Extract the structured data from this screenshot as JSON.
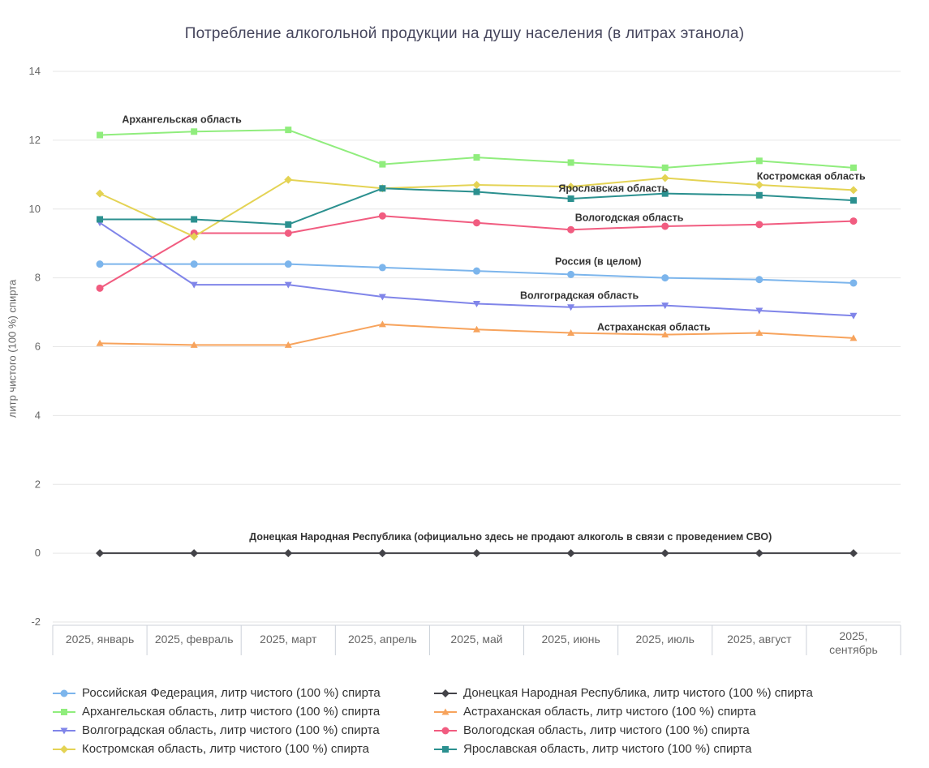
{
  "title": "Потребление алкогольной продукции на душу населения (в литрах этанола)",
  "chart_data": {
    "type": "line",
    "title": "Потребление алкогольной продукции на душу населения (в литрах этанола)",
    "xlabel": "",
    "ylabel": "литр чистого (100 %) спирта",
    "ylim": [
      -2,
      14
    ],
    "ytick_step": 2,
    "grid": true,
    "legend_position": "bottom",
    "categories": [
      "2025, январь",
      "2025, февраль",
      "2025, март",
      "2025, апрель",
      "2025, май",
      "2025, июнь",
      "2025, июль",
      "2025, август",
      "2025, сентябрь"
    ],
    "series": [
      {
        "name": "Российская Федерация, литр чистого (100 %) спирта",
        "color": "#7cb5ec",
        "marker": "circle",
        "values": [
          8.4,
          8.4,
          8.4,
          8.3,
          8.2,
          8.1,
          8.0,
          7.95,
          7.85
        ]
      },
      {
        "name": "Донецкая Народная Республика, литр чистого (100 %) спирта",
        "color": "#434348",
        "marker": "diamond",
        "values": [
          0,
          0,
          0,
          0,
          0,
          0,
          0,
          0,
          0
        ]
      },
      {
        "name": "Архангельская область, литр чистого (100 %) спирта",
        "color": "#90ed7d",
        "marker": "square",
        "values": [
          12.15,
          12.25,
          12.3,
          11.3,
          11.5,
          11.35,
          11.2,
          11.4,
          11.2
        ]
      },
      {
        "name": "Астраханская область, литр чистого (100 %) спирта",
        "color": "#f7a35c",
        "marker": "triangle",
        "values": [
          6.1,
          6.05,
          6.05,
          6.65,
          6.5,
          6.4,
          6.35,
          6.4,
          6.25
        ]
      },
      {
        "name": "Волгоградская область, литр чистого (100 %) спирта",
        "color": "#8085e9",
        "marker": "triangle-down",
        "values": [
          9.6,
          7.8,
          7.8,
          7.45,
          7.25,
          7.15,
          7.2,
          7.05,
          6.9
        ]
      },
      {
        "name": "Вологодская область, литр чистого (100 %) спирта",
        "color": "#f15c80",
        "marker": "circle",
        "values": [
          7.7,
          9.3,
          9.3,
          9.8,
          9.6,
          9.4,
          9.5,
          9.55,
          9.65
        ]
      },
      {
        "name": "Костромская область, литр чистого (100 %) спирта",
        "color": "#e4d354",
        "marker": "diamond",
        "values": [
          10.45,
          9.2,
          10.85,
          10.6,
          10.7,
          10.65,
          10.9,
          10.7,
          10.55
        ]
      },
      {
        "name": "Ярославская область, литр чистого (100 %) спирта",
        "color": "#2b908f",
        "marker": "square",
        "values": [
          9.7,
          9.7,
          9.55,
          10.6,
          10.5,
          10.3,
          10.45,
          10.4,
          10.25
        ]
      }
    ],
    "annotations": [
      {
        "text": "Архангельская область",
        "month": 0.87,
        "value": 12.6
      },
      {
        "text": "Костромская область",
        "month": 7.55,
        "value": 10.95
      },
      {
        "text": "Ярославская область",
        "month": 5.45,
        "value": 10.6
      },
      {
        "text": "Вологодская область",
        "month": 5.62,
        "value": 9.75
      },
      {
        "text": "Россия (в целом)",
        "month": 5.29,
        "value": 8.47
      },
      {
        "text": "Волгоградская область",
        "month": 5.09,
        "value": 7.48
      },
      {
        "text": "Астраханская область",
        "month": 5.88,
        "value": 6.57
      },
      {
        "text": "Донецкая Народная Республика (официально здесь не продают алкоголь в связи с проведением СВО)",
        "month": 4.36,
        "value": 0.47
      }
    ]
  }
}
